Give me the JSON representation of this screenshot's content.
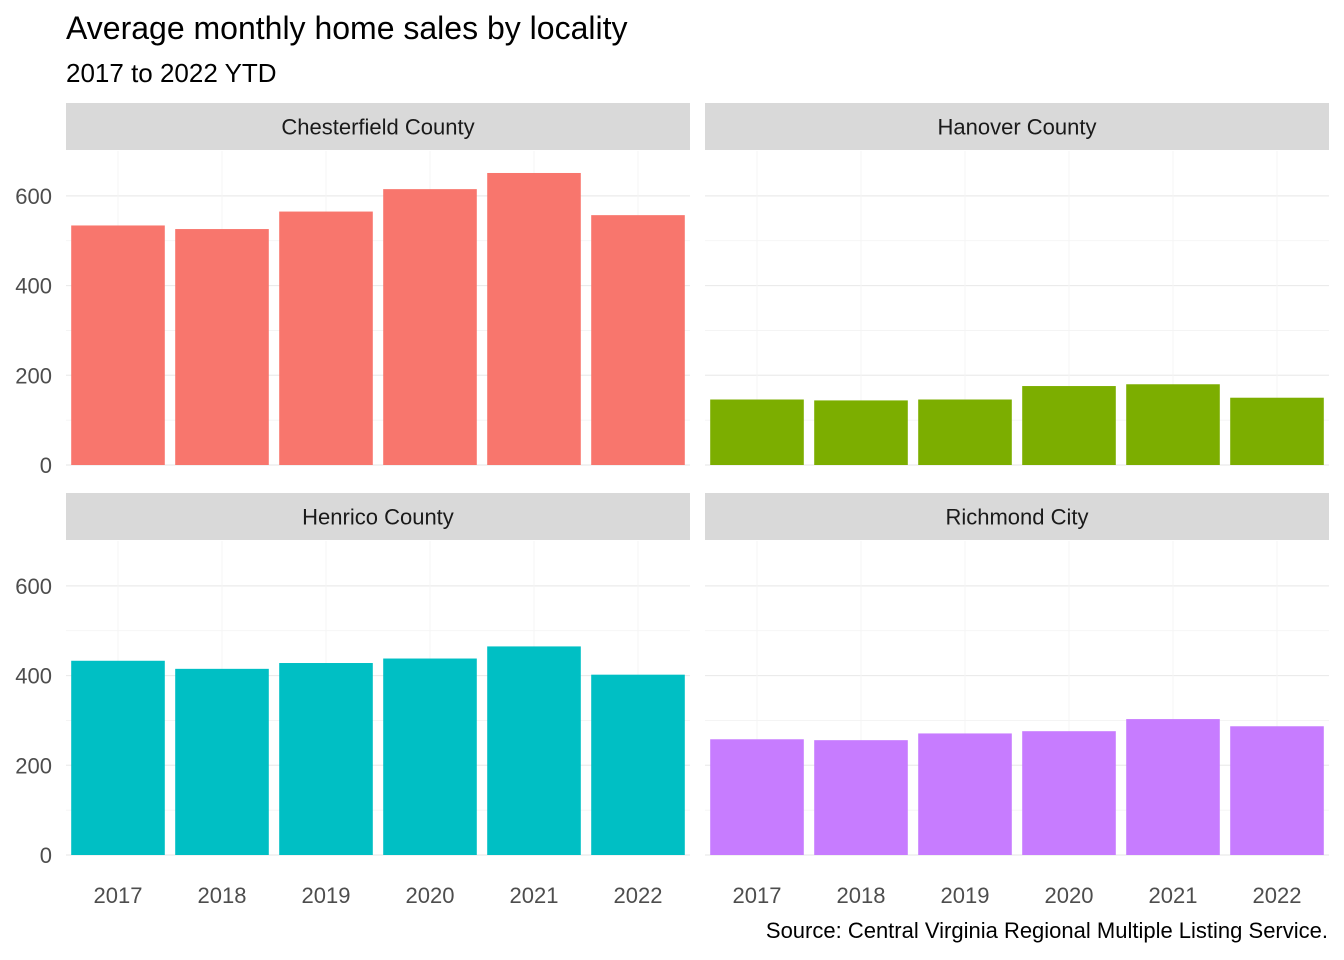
{
  "chart_data": {
    "type": "bar",
    "title": "Average monthly home sales by locality",
    "subtitle": "2017 to 2022 YTD",
    "caption": "Source: Central Virginia Regional Multiple Listing Service.",
    "xlabel": "",
    "ylabel": "",
    "categories": [
      "2017",
      "2018",
      "2019",
      "2020",
      "2021",
      "2022"
    ],
    "ylim": [
      0,
      700
    ],
    "yticks": [
      0,
      200,
      400,
      600
    ],
    "grid": true,
    "legend": "none",
    "facets": [
      {
        "name": "Chesterfield County",
        "color": "#F8766D",
        "values": [
          534,
          526,
          565,
          615,
          651,
          557
        ]
      },
      {
        "name": "Hanover County",
        "color": "#7CAE00",
        "values": [
          146,
          144,
          146,
          176,
          180,
          150
        ]
      },
      {
        "name": "Henrico County",
        "color": "#00BFC4",
        "values": [
          433,
          415,
          428,
          438,
          465,
          402
        ]
      },
      {
        "name": "Richmond City",
        "color": "#C77CFF",
        "values": [
          258,
          256,
          271,
          276,
          303,
          287
        ]
      }
    ]
  }
}
